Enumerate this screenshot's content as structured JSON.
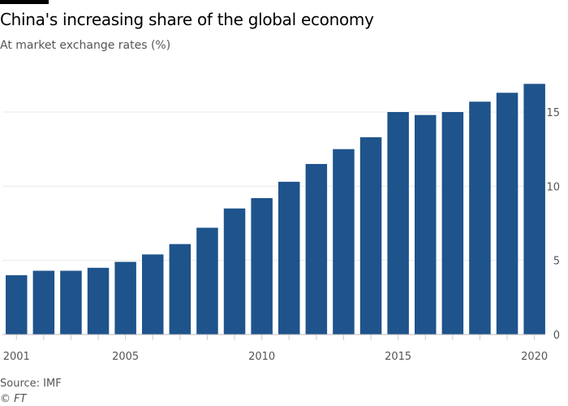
{
  "chart_data": {
    "type": "bar",
    "title": "China's increasing share of the global economy",
    "subtitle": "At market exchange rates (%)",
    "xlabel": "",
    "ylabel": "",
    "categories": [
      2001,
      2002,
      2003,
      2004,
      2005,
      2006,
      2007,
      2008,
      2009,
      2010,
      2011,
      2012,
      2013,
      2014,
      2015,
      2016,
      2017,
      2018,
      2019,
      2020
    ],
    "values": [
      4.0,
      4.3,
      4.3,
      4.5,
      4.9,
      5.4,
      6.1,
      7.2,
      8.5,
      9.2,
      10.3,
      11.5,
      12.5,
      13.3,
      15.0,
      14.8,
      15.0,
      15.7,
      16.3,
      16.9
    ],
    "x_tick_labels": [
      "2001",
      "2005",
      "2010",
      "2015",
      "2020"
    ],
    "y_ticks": [
      0,
      5,
      10,
      15
    ],
    "ylim": [
      0,
      17.5
    ],
    "grid": true,
    "y_axis_side": "right",
    "bar_color": "#1e538c",
    "source": "Source: IMF",
    "copyright": "© FT"
  }
}
